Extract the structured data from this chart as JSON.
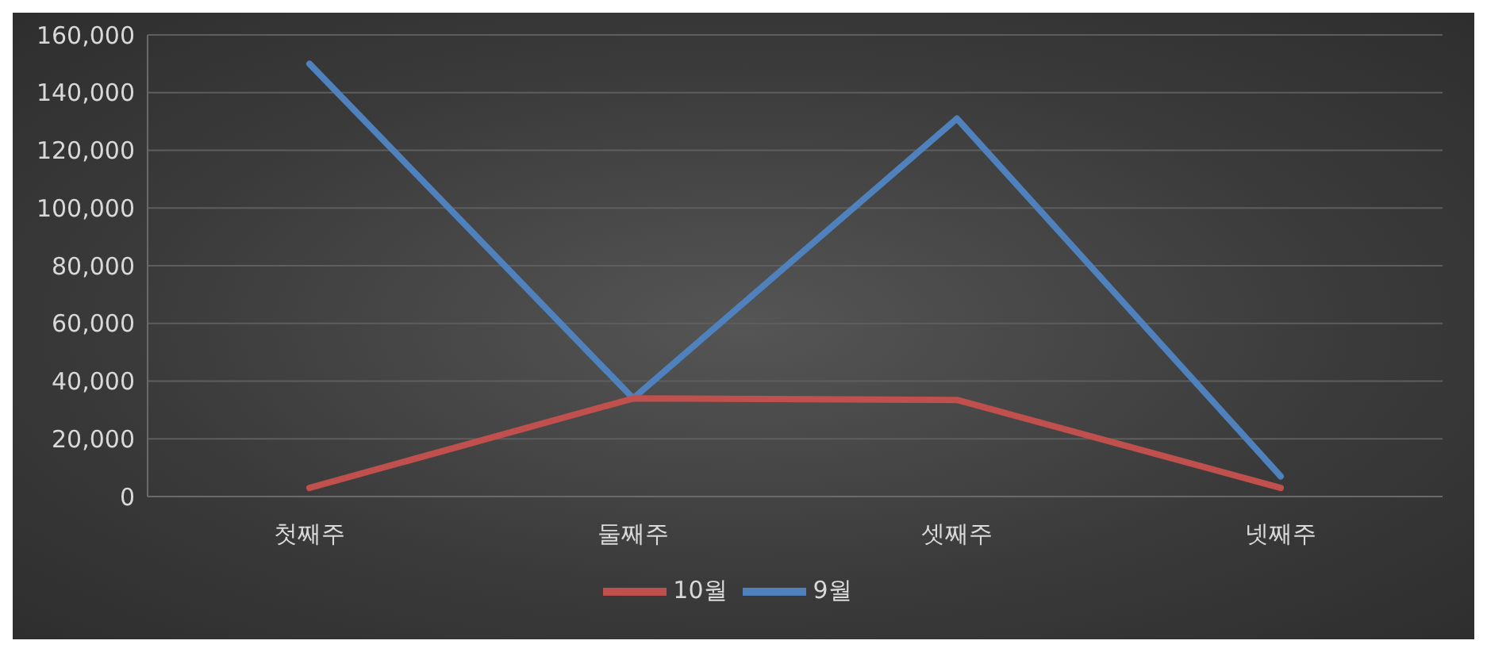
{
  "chart_data": {
    "type": "line",
    "categories": [
      "첫째주",
      "둘째주",
      "셋째주",
      "넷째주"
    ],
    "series": [
      {
        "name": "9월",
        "color": "#4f81bd",
        "values": [
          150000,
          34000,
          131000,
          7000
        ]
      },
      {
        "name": "10월",
        "color": "#c0504d",
        "values": [
          3000,
          34000,
          33500,
          3000
        ]
      }
    ],
    "ylim": [
      0,
      160000
    ],
    "yticks": [
      {
        "value": 0,
        "label": "0"
      },
      {
        "value": 20000,
        "label": "20,000"
      },
      {
        "value": 40000,
        "label": "40,000"
      },
      {
        "value": 60000,
        "label": "60,000"
      },
      {
        "value": 80000,
        "label": "80,000"
      },
      {
        "value": 100000,
        "label": "100,000"
      },
      {
        "value": 120000,
        "label": "120,000"
      },
      {
        "value": 140000,
        "label": "140,000"
      },
      {
        "value": 160000,
        "label": "160,000"
      }
    ],
    "grid": "y",
    "legend": "bottom",
    "marker": "none",
    "line_style": "solid"
  }
}
